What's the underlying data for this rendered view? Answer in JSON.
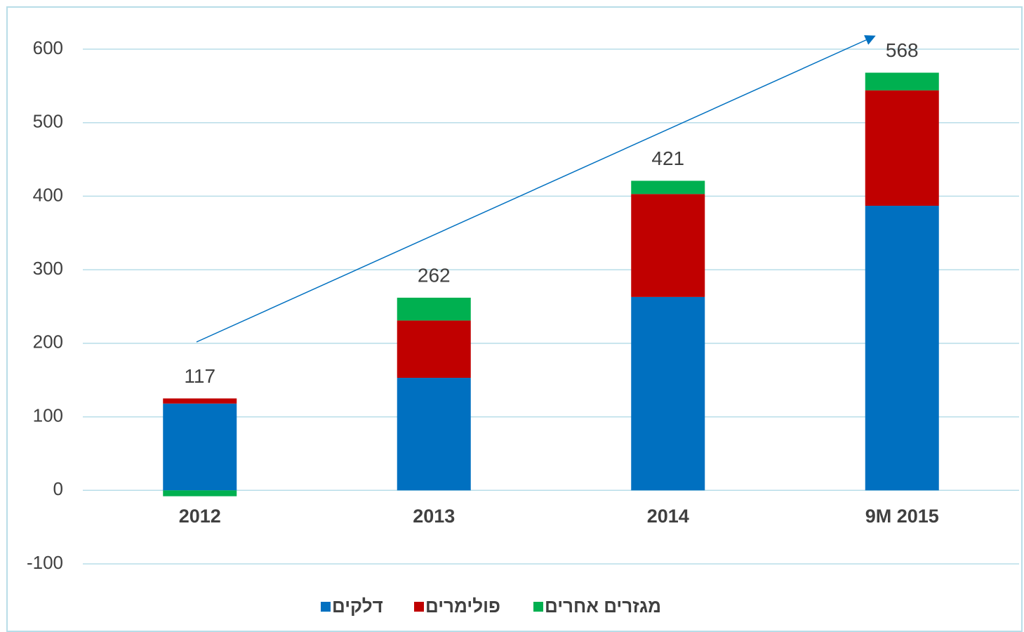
{
  "chart_data": {
    "type": "stacked_bar",
    "categories": [
      "2012",
      "2013",
      "2014",
      "9M 2015"
    ],
    "series": [
      {
        "name": "דלקים",
        "color": "#0070c0",
        "values": [
          118,
          153,
          263,
          387
        ]
      },
      {
        "name": "פולימרים",
        "color": "#c00000",
        "values": [
          7,
          78,
          140,
          157
        ]
      },
      {
        "name": "מגזרים אחרים",
        "color": "#00b050",
        "values": [
          -8,
          31,
          18,
          24
        ]
      }
    ],
    "totals": [
      117,
      262,
      421,
      568
    ],
    "ylim": [
      -100,
      600
    ],
    "yticks": [
      -100,
      0,
      100,
      200,
      300,
      400,
      500,
      600
    ],
    "grid": true,
    "legend": "bottom"
  }
}
